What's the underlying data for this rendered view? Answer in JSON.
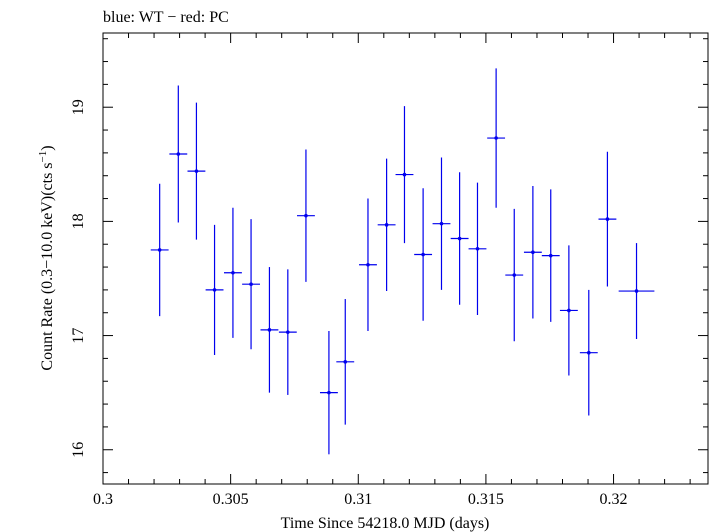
{
  "chart_data": {
    "type": "scatter",
    "title": "blue: WT − red: PC",
    "xlabel": "Time Since 54218.0 MJD (days)",
    "ylabel_main": "Count Rate (0.3−10.0 keV)(cts s",
    "ylabel_sup": "−1",
    "ylabel_close": ")",
    "xlim": [
      0.3,
      0.3237
    ],
    "ylim": [
      15.7,
      19.65
    ],
    "xticks": [
      0.3,
      0.305,
      0.31,
      0.315,
      0.32
    ],
    "xtick_labels": [
      "0.3",
      "0.305",
      "0.31",
      "0.315",
      "0.32"
    ],
    "yticks": [
      16,
      17,
      18,
      19
    ],
    "ytick_labels": [
      "16",
      "17",
      "18",
      "19"
    ],
    "grid": false,
    "colors": {
      "series": "#0000ee",
      "axes": "#000000"
    },
    "series": [
      {
        "points": [
          {
            "x": 0.30222,
            "xerr": 0.00035,
            "y": 17.75,
            "yerr": 0.58
          },
          {
            "x": 0.30295,
            "xerr": 0.00035,
            "y": 18.59,
            "yerr": 0.6
          },
          {
            "x": 0.30366,
            "xerr": 0.00035,
            "y": 18.44,
            "yerr": 0.6
          },
          {
            "x": 0.30437,
            "xerr": 0.00035,
            "y": 17.4,
            "yerr": 0.57
          },
          {
            "x": 0.30509,
            "xerr": 0.00035,
            "y": 17.55,
            "yerr": 0.57
          },
          {
            "x": 0.3058,
            "xerr": 0.00035,
            "y": 17.45,
            "yerr": 0.57
          },
          {
            "x": 0.30652,
            "xerr": 0.00035,
            "y": 17.05,
            "yerr": 0.55
          },
          {
            "x": 0.30724,
            "xerr": 0.00035,
            "y": 17.03,
            "yerr": 0.55
          },
          {
            "x": 0.30795,
            "xerr": 0.00035,
            "y": 18.05,
            "yerr": 0.58
          },
          {
            "x": 0.30885,
            "xerr": 0.00035,
            "y": 16.5,
            "yerr": 0.54
          },
          {
            "x": 0.30949,
            "xerr": 0.00035,
            "y": 16.77,
            "yerr": 0.55
          },
          {
            "x": 0.31038,
            "xerr": 0.00035,
            "y": 17.62,
            "yerr": 0.58
          },
          {
            "x": 0.31111,
            "xerr": 0.00035,
            "y": 17.97,
            "yerr": 0.58
          },
          {
            "x": 0.31181,
            "xerr": 0.00035,
            "y": 18.41,
            "yerr": 0.6
          },
          {
            "x": 0.31254,
            "xerr": 0.00035,
            "y": 17.71,
            "yerr": 0.58
          },
          {
            "x": 0.31326,
            "xerr": 0.00035,
            "y": 17.98,
            "yerr": 0.58
          },
          {
            "x": 0.31397,
            "xerr": 0.00035,
            "y": 17.85,
            "yerr": 0.58
          },
          {
            "x": 0.31467,
            "xerr": 0.00035,
            "y": 17.76,
            "yerr": 0.58
          },
          {
            "x": 0.3154,
            "xerr": 0.00035,
            "y": 18.73,
            "yerr": 0.61
          },
          {
            "x": 0.31611,
            "xerr": 0.00035,
            "y": 17.53,
            "yerr": 0.58
          },
          {
            "x": 0.31684,
            "xerr": 0.00035,
            "y": 17.73,
            "yerr": 0.58
          },
          {
            "x": 0.31754,
            "xerr": 0.00035,
            "y": 17.7,
            "yerr": 0.58
          },
          {
            "x": 0.31825,
            "xerr": 0.00035,
            "y": 17.22,
            "yerr": 0.57
          },
          {
            "x": 0.31903,
            "xerr": 0.00035,
            "y": 16.85,
            "yerr": 0.55
          },
          {
            "x": 0.31976,
            "xerr": 0.00035,
            "y": 18.02,
            "yerr": 0.59
          },
          {
            "x": 0.3209,
            "xerr": 0.0007,
            "y": 17.39,
            "yerr": 0.42
          }
        ]
      }
    ]
  }
}
